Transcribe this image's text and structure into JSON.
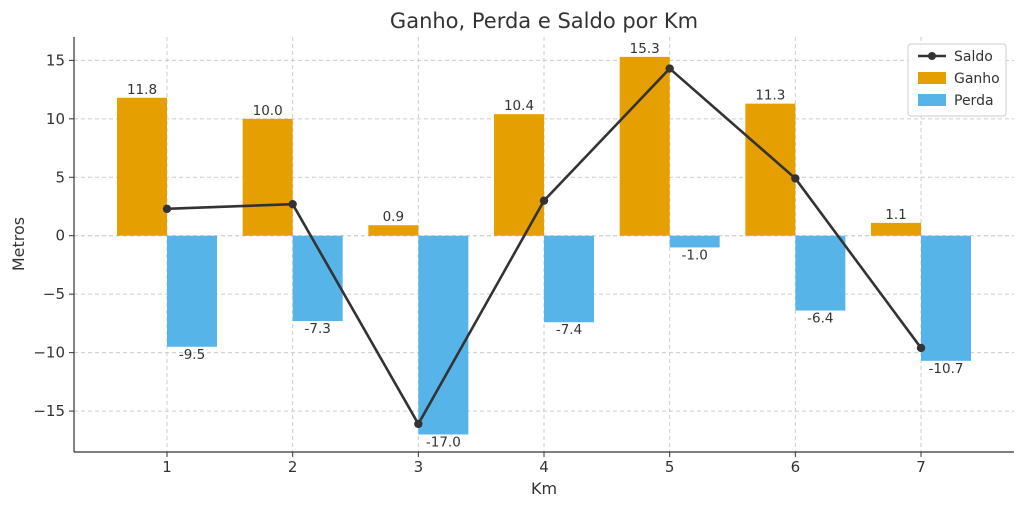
{
  "chart_data": {
    "type": "bar",
    "title": "Ganho, Perda e Saldo por Km",
    "xlabel": "Km",
    "ylabel": "Metros",
    "categories": [
      "1",
      "2",
      "3",
      "4",
      "5",
      "6",
      "7"
    ],
    "ylim": [
      -18.5,
      17
    ],
    "yticks": [
      15,
      10,
      5,
      0,
      -5,
      -10,
      -15
    ],
    "ytick_labels": [
      "15",
      "10",
      "5",
      "0",
      "−5",
      "−10",
      "−15"
    ],
    "grid": true,
    "legend_position": "top-right",
    "series": [
      {
        "name": "Ganho",
        "kind": "bar",
        "color": "#E69F00",
        "values": [
          11.8,
          10.0,
          0.9,
          10.4,
          15.3,
          11.3,
          1.1
        ],
        "labels": [
          "11.8",
          "10.0",
          "0.9",
          "10.4",
          "15.3",
          "11.3",
          "1.1"
        ]
      },
      {
        "name": "Perda",
        "kind": "bar",
        "color": "#56B4E9",
        "values": [
          -9.5,
          -7.3,
          -17.0,
          -7.4,
          -1.0,
          -6.4,
          -10.7
        ],
        "labels": [
          "-9.5",
          "-7.3",
          "-17.0",
          "-7.4",
          "-1.0",
          "-6.4",
          "-10.7"
        ]
      },
      {
        "name": "Saldo",
        "kind": "line",
        "color": "#333333",
        "values": [
          2.3,
          2.7,
          -16.1,
          3.0,
          14.3,
          4.9,
          -9.6
        ]
      }
    ],
    "legend": [
      "Saldo",
      "Ganho",
      "Perda"
    ]
  }
}
